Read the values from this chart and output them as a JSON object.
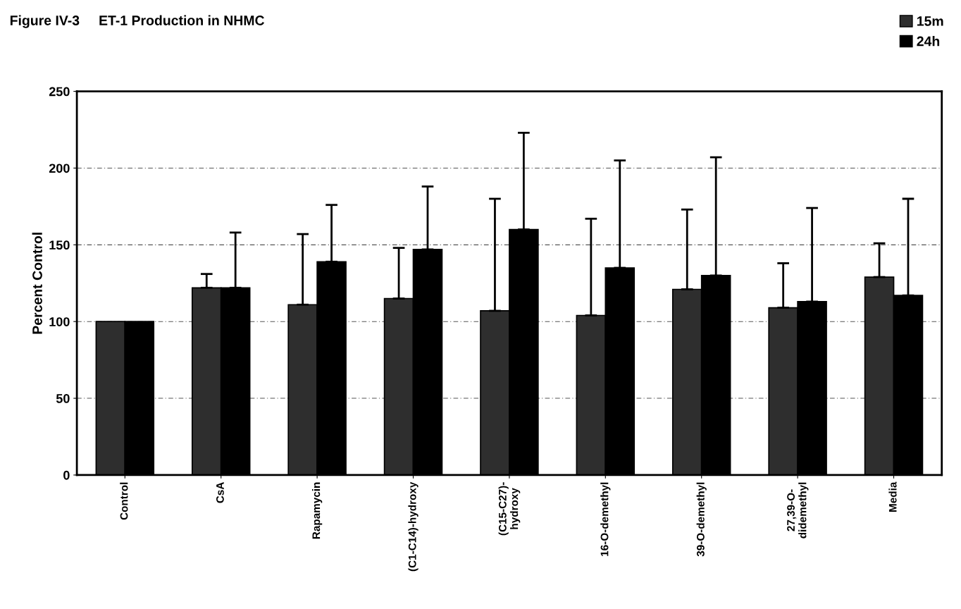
{
  "chart_data": {
    "type": "bar",
    "title": "Figure IV-3     ET-1 Production in NHMC",
    "ylabel": "Percent Control",
    "categories": [
      "Control",
      "CsA",
      "Rapamycin",
      "(C1-C14)-hydroxy",
      "(C15-C27)-\nhydroxy",
      "16-O-demethyl",
      "39-O-demethyl",
      "27,39-O-\ndidemethyl",
      "Media"
    ],
    "series": [
      {
        "name": "15m",
        "color": "#2e2e2e",
        "values": [
          100,
          122,
          111,
          115,
          107,
          104,
          121,
          109,
          129
        ],
        "errors": [
          null,
          [
            122,
            131
          ],
          [
            111,
            157
          ],
          [
            115,
            148
          ],
          [
            107,
            180
          ],
          [
            104,
            167
          ],
          [
            121,
            173
          ],
          [
            109,
            138
          ],
          [
            129,
            151
          ]
        ]
      },
      {
        "name": "24h",
        "color": "#000000",
        "values": [
          100,
          122,
          139,
          147,
          160,
          135,
          130,
          113,
          117
        ],
        "errors": [
          null,
          [
            122,
            158
          ],
          [
            139,
            176
          ],
          [
            147,
            188
          ],
          [
            160,
            223
          ],
          [
            135,
            205
          ],
          [
            130,
            207
          ],
          [
            113,
            174
          ],
          [
            117,
            180
          ]
        ]
      }
    ],
    "ylim": [
      0,
      250
    ],
    "yticks": [
      0,
      50,
      100,
      150,
      200,
      250
    ],
    "grid": "y",
    "legend": "top right"
  }
}
